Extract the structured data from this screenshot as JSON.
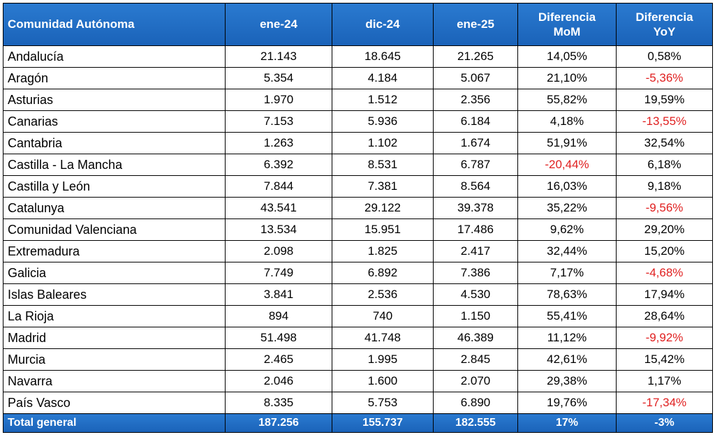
{
  "table": {
    "header": [
      "Comunidad Autónoma",
      "ene-24",
      "dic-24",
      "ene-25",
      "Diferencia MoM",
      "Diferencia YoY"
    ],
    "rows": [
      [
        "Andalucía",
        "21.143",
        "18.645",
        "21.265",
        "14,05%",
        "0,58%"
      ],
      [
        "Aragón",
        "5.354",
        "4.184",
        "5.067",
        "21,10%",
        "-5,36%"
      ],
      [
        "Asturias",
        "1.970",
        "1.512",
        "2.356",
        "55,82%",
        "19,59%"
      ],
      [
        "Canarias",
        "7.153",
        "5.936",
        "6.184",
        "4,18%",
        "-13,55%"
      ],
      [
        "Cantabria",
        "1.263",
        "1.102",
        "1.674",
        "51,91%",
        "32,54%"
      ],
      [
        "Castilla - La Mancha",
        "6.392",
        "8.531",
        "6.787",
        "-20,44%",
        "6,18%"
      ],
      [
        "Castilla y León",
        "7.844",
        "7.381",
        "8.564",
        "16,03%",
        "9,18%"
      ],
      [
        "Catalunya",
        "43.541",
        "29.122",
        "39.378",
        "35,22%",
        "-9,56%"
      ],
      [
        "Comunidad Valenciana",
        "13.534",
        "15.951",
        "17.486",
        "9,62%",
        "29,20%"
      ],
      [
        "Extremadura",
        "2.098",
        "1.825",
        "2.417",
        "32,44%",
        "15,20%"
      ],
      [
        "Galicia",
        "7.749",
        "6.892",
        "7.386",
        "7,17%",
        "-4,68%"
      ],
      [
        "Islas Baleares",
        "3.841",
        "2.536",
        "4.530",
        "78,63%",
        "17,94%"
      ],
      [
        "La Rioja",
        "894",
        "740",
        "1.150",
        "55,41%",
        "28,64%"
      ],
      [
        "Madrid",
        "51.498",
        "41.748",
        "46.389",
        "11,12%",
        "-9,92%"
      ],
      [
        "Murcia",
        "2.465",
        "1.995",
        "2.845",
        "42,61%",
        "15,42%"
      ],
      [
        "Navarra",
        "2.046",
        "1.600",
        "2.070",
        "29,38%",
        "1,17%"
      ],
      [
        "País Vasco",
        "8.335",
        "5.753",
        "6.890",
        "19,76%",
        "-17,34%"
      ]
    ],
    "total": [
      "Total general",
      "187.256",
      "155.737",
      "182.555",
      "17%",
      "-3%"
    ]
  }
}
